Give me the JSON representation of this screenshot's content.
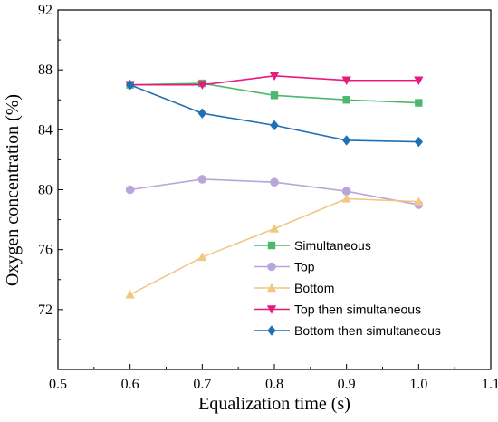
{
  "chart_data": {
    "type": "line",
    "title": "",
    "xlabel": "Equalization time (s)",
    "ylabel": "Oxygen concentration (%)",
    "xlim": [
      0.5,
      1.1
    ],
    "ylim": [
      68,
      92
    ],
    "x_ticks": [
      "0.5",
      "0.6",
      "0.7",
      "0.8",
      "0.9",
      "1.0",
      "1.1"
    ],
    "y_ticks": [
      "72",
      "76",
      "80",
      "84",
      "88",
      "92"
    ],
    "grid": false,
    "legend_position": "bottom-right",
    "x": [
      0.6,
      0.7,
      0.8,
      0.9,
      1.0
    ],
    "series": [
      {
        "name": "Simultaneous",
        "marker": "square",
        "color": "#4cb86b",
        "values": [
          87.0,
          87.1,
          86.3,
          86.0,
          85.8
        ]
      },
      {
        "name": "Top",
        "marker": "circle",
        "color": "#b9a6d9",
        "values": [
          80.0,
          80.7,
          80.5,
          79.9,
          79.0
        ]
      },
      {
        "name": "Bottom",
        "marker": "triangle-up",
        "color": "#f2c786",
        "values": [
          73.0,
          75.5,
          77.4,
          79.4,
          79.2
        ]
      },
      {
        "name": "Top then simultaneous",
        "marker": "triangle-down",
        "color": "#e8197f",
        "values": [
          87.0,
          87.0,
          87.6,
          87.3,
          87.3
        ]
      },
      {
        "name": "Bottom then simultaneous",
        "marker": "diamond",
        "color": "#1f6fb4",
        "values": [
          87.0,
          85.1,
          84.3,
          83.3,
          83.2
        ]
      }
    ]
  }
}
